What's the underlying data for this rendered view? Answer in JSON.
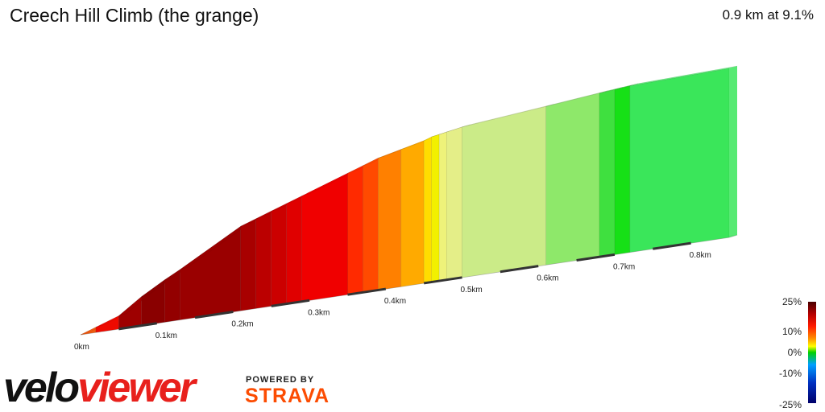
{
  "header": {
    "title": "Creech Hill Climb (the grange)",
    "summary": "0.9 km at 9.1%"
  },
  "branding": {
    "logo_part1": "velo",
    "logo_part2": "viewer",
    "powered_by": "POWERED BY",
    "strava": "STRAVA"
  },
  "legend": {
    "labels": [
      "25%",
      "10%",
      "0%",
      "-10%",
      "-25%"
    ]
  },
  "chart_data": {
    "type": "area",
    "xlabel": "",
    "ylabel": "",
    "x_unit": "km",
    "x_ticks": [
      "0km",
      "0.1km",
      "0.2km",
      "0.3km",
      "0.4km",
      "0.5km",
      "0.6km",
      "0.7km",
      "0.8km"
    ],
    "x_tick_values": [
      0,
      0.1,
      0.2,
      0.3,
      0.4,
      0.5,
      0.6,
      0.7,
      0.8
    ],
    "xlim": [
      0,
      0.9
    ],
    "segments": [
      {
        "start": 0.0,
        "end": 0.02,
        "gradient": 9,
        "color": "#f05a10"
      },
      {
        "start": 0.02,
        "end": 0.05,
        "gradient": 12,
        "color": "#ee0a00"
      },
      {
        "start": 0.05,
        "end": 0.08,
        "gradient": 16,
        "color": "#9e0000"
      },
      {
        "start": 0.08,
        "end": 0.11,
        "gradient": 18,
        "color": "#8a0000"
      },
      {
        "start": 0.11,
        "end": 0.13,
        "gradient": 17,
        "color": "#930000"
      },
      {
        "start": 0.13,
        "end": 0.21,
        "gradient": 17,
        "color": "#9a0000"
      },
      {
        "start": 0.21,
        "end": 0.23,
        "gradient": 15,
        "color": "#a80000"
      },
      {
        "start": 0.23,
        "end": 0.25,
        "gradient": 14,
        "color": "#bb0000"
      },
      {
        "start": 0.25,
        "end": 0.27,
        "gradient": 13,
        "color": "#cc0000"
      },
      {
        "start": 0.27,
        "end": 0.29,
        "gradient": 12,
        "color": "#e00000"
      },
      {
        "start": 0.29,
        "end": 0.35,
        "gradient": 12,
        "color": "#f00000"
      },
      {
        "start": 0.35,
        "end": 0.37,
        "gradient": 11,
        "color": "#ff2a00"
      },
      {
        "start": 0.37,
        "end": 0.39,
        "gradient": 10,
        "color": "#ff4a00"
      },
      {
        "start": 0.39,
        "end": 0.42,
        "gradient": 9,
        "color": "#ff8000"
      },
      {
        "start": 0.42,
        "end": 0.45,
        "gradient": 8,
        "color": "#ffaa00"
      },
      {
        "start": 0.45,
        "end": 0.46,
        "gradient": 7,
        "color": "#ffdd00"
      },
      {
        "start": 0.46,
        "end": 0.47,
        "gradient": 6,
        "color": "#f2f000"
      },
      {
        "start": 0.47,
        "end": 0.48,
        "gradient": 6,
        "color": "#eef27a"
      },
      {
        "start": 0.48,
        "end": 0.5,
        "gradient": 5,
        "color": "#e4ee88"
      },
      {
        "start": 0.5,
        "end": 0.61,
        "gradient": 4,
        "color": "#cbeb88"
      },
      {
        "start": 0.61,
        "end": 0.68,
        "gradient": 3,
        "color": "#8ee86a"
      },
      {
        "start": 0.68,
        "end": 0.7,
        "gradient": 2,
        "color": "#3fe03f"
      },
      {
        "start": 0.7,
        "end": 0.72,
        "gradient": 2,
        "color": "#16e016"
      },
      {
        "start": 0.72,
        "end": 0.85,
        "gradient": 1,
        "color": "#3ae65a"
      }
    ],
    "elevation_profile": {
      "x": [
        0,
        0.02,
        0.05,
        0.08,
        0.11,
        0.13,
        0.21,
        0.23,
        0.25,
        0.27,
        0.29,
        0.35,
        0.37,
        0.39,
        0.42,
        0.45,
        0.46,
        0.47,
        0.48,
        0.5,
        0.61,
        0.68,
        0.7,
        0.72,
        0.85
      ],
      "y": [
        0,
        2,
        5,
        11,
        16,
        19,
        32,
        34,
        36,
        38,
        40,
        46,
        48,
        50,
        52,
        54,
        55,
        55.5,
        56,
        57,
        60,
        62,
        62.5,
        63,
        64
      ]
    }
  }
}
